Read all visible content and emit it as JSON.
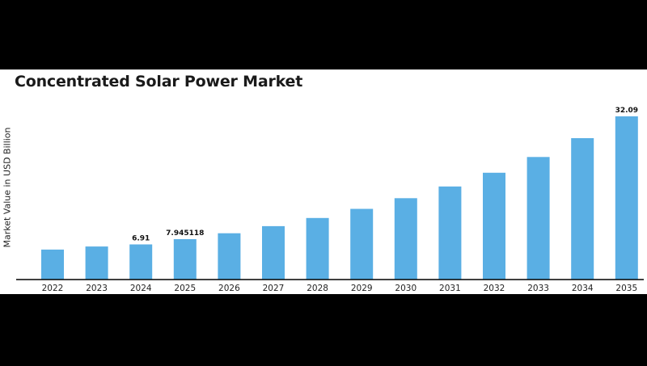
{
  "chart_data": {
    "type": "bar",
    "title": "Concentrated Solar Power Market",
    "xlabel": "",
    "ylabel": "Market Value in USD Billion",
    "categories": [
      "2022",
      "2023",
      "2024",
      "2025",
      "2026",
      "2027",
      "2028",
      "2029",
      "2030",
      "2031",
      "2032",
      "2033",
      "2034",
      "2035"
    ],
    "values": [
      5.9,
      6.5,
      6.91,
      7.945118,
      9.1,
      10.5,
      12.1,
      13.9,
      16.0,
      18.3,
      21.0,
      24.1,
      27.8,
      32.09
    ],
    "data_labels": [
      {
        "category": "2024",
        "text": "6.91"
      },
      {
        "category": "2025",
        "text": "7.945118"
      },
      {
        "category": "2035",
        "text": "32.09"
      }
    ],
    "ylim": [
      0,
      32.09
    ],
    "bar_color": "#5aafe4",
    "axis_color": "#000000",
    "grid": false,
    "legend": "none"
  }
}
